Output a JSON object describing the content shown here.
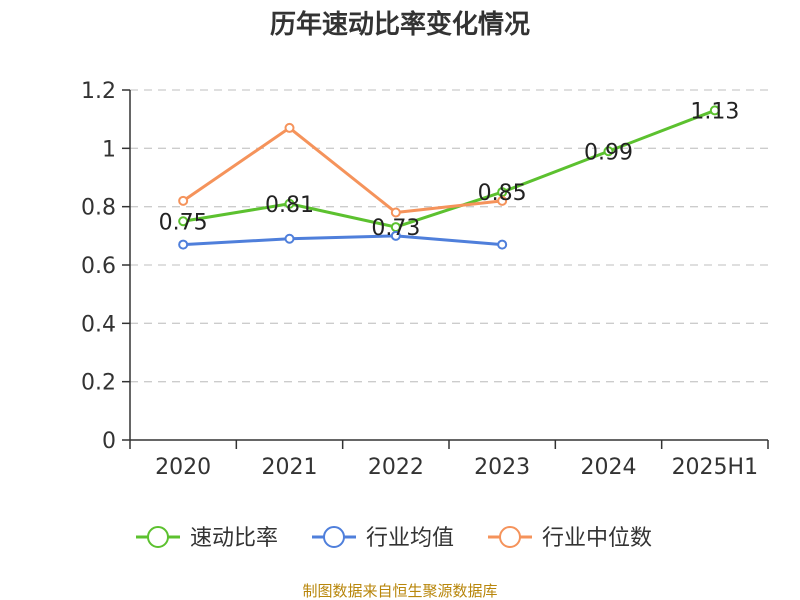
{
  "chart_data": {
    "type": "line",
    "title": "历年速动比率变化情况",
    "categories": [
      "2020",
      "2021",
      "2022",
      "2023",
      "2024",
      "2025H1"
    ],
    "ylim": [
      0,
      1.2
    ],
    "yticks": [
      "0",
      "0.2",
      "0.4",
      "0.6",
      "0.8",
      "1",
      "1.2"
    ],
    "grid": true,
    "legend_position": "bottom",
    "series": [
      {
        "name": "速动比率",
        "color": "#5cc12f",
        "values": [
          0.75,
          0.81,
          0.73,
          0.85,
          0.99,
          1.13
        ],
        "labels": [
          "0.75",
          "0.81",
          "0.73",
          "0.85",
          "0.99",
          "1.13"
        ]
      },
      {
        "name": "行业均值",
        "color": "#4f7fdb",
        "values": [
          0.67,
          0.69,
          0.7,
          0.67,
          null,
          null
        ]
      },
      {
        "name": "行业中位数",
        "color": "#f5935b",
        "values": [
          0.82,
          1.07,
          0.78,
          0.82,
          null,
          null
        ]
      }
    ],
    "source": "制图数据来自恒生聚源数据库"
  }
}
